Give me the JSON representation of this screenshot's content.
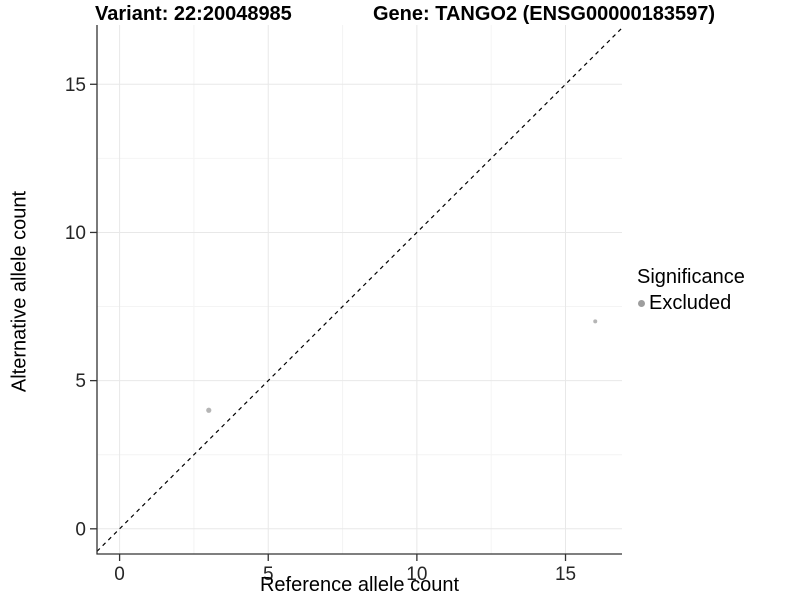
{
  "header": {
    "variant_title": "Variant: 22:20048985",
    "gene_title": "Gene: TANGO2 (ENSG00000183597)"
  },
  "chart_data": {
    "type": "scatter",
    "title": "Variant: 22:20048985  |  Gene: TANGO2 (ENSG00000183597)",
    "xlabel": "Reference allele count",
    "ylabel": "Alternative allele count",
    "xlim": [
      -0.76,
      16.9
    ],
    "ylim": [
      -0.85,
      17.0
    ],
    "xticks": [
      0,
      5,
      10,
      15
    ],
    "yticks": [
      0,
      5,
      10,
      15
    ],
    "minor_step": 2.5,
    "grid": true,
    "points": [
      {
        "x": 3,
        "y": 4,
        "significance": "Excluded",
        "r": 2.6
      },
      {
        "x": 16,
        "y": 7,
        "significance": "Excluded",
        "r": 2.0
      }
    ],
    "identity_line": {
      "style": "dashed",
      "from": -0.76,
      "to": 16.9,
      "color": "#000000"
    },
    "colors": {
      "point": "#b5b5b5",
      "axis_line": "#333333",
      "tick_mark": "#333333",
      "grid_major": "#e8e8e8",
      "grid_minor": "#f4f4f4",
      "tick_label": "#262626"
    },
    "legend": {
      "position": "right",
      "title": "Significance",
      "items": [
        {
          "label": "Excluded",
          "color": "#9e9e9e"
        }
      ]
    }
  }
}
